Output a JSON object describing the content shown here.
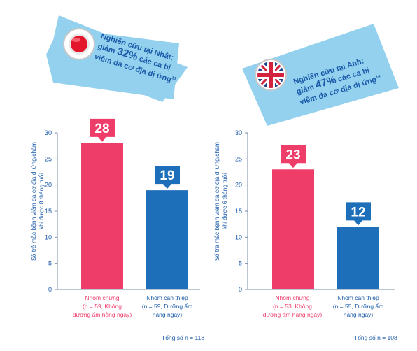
{
  "colors": {
    "control": "#ef3d6a",
    "intervention": "#1e6fba",
    "banner_bg": "#93d1ef",
    "axis_text": "#1a5aa8"
  },
  "panels": [
    {
      "banner": {
        "flag_icon": "japan-flag-icon",
        "line1": "Nghiên cứu tại Nhật:",
        "line2_prefix": "giảm ",
        "line2_pct": "32%",
        "line2_suffix": " các ca bị",
        "line3": "viêm da cơ địa dị ứng",
        "ref": "13"
      },
      "ylabel_line1": "Số trẻ mắc bệnh viêm da cơ địa dị ứng/chàm",
      "ylabel_line2": "khi được 8 tháng tuổi",
      "categories": [
        {
          "line1": "Nhóm chứng",
          "line2": "(n = 59, Không",
          "line3": "dưỡng ẩm hằng ngày)"
        },
        {
          "line1": "Nhóm can thiệp",
          "line2": "(n = 59, Dưỡng ẩm",
          "line3": "hằng ngày)"
        }
      ],
      "total": "Tổng số n = 118"
    },
    {
      "banner": {
        "flag_icon": "uk-flag-icon",
        "line1": "Nghiên cứu tại Anh:",
        "line2_prefix": "giảm ",
        "line2_pct": "47%",
        "line2_suffix": " các ca bị",
        "line3": "viêm da cơ địa dị ứng",
        "ref": "14"
      },
      "ylabel_line1": "Số trẻ mắc bệnh viêm da cơ địa dị ứng/chàm",
      "ylabel_line2": "khi được 6 tháng tuổi",
      "categories": [
        {
          "line1": "Nhóm chứng",
          "line2": "(n = 53, Không",
          "line3": "dưỡng ẩm hằng ngày)"
        },
        {
          "line1": "Nhóm can thiệp",
          "line2": "(n = 55, Dưỡng ẩm",
          "line3": "hằng ngày)"
        }
      ],
      "total": "Tổng số n = 108"
    }
  ],
  "chart_data": [
    {
      "type": "bar",
      "categories": [
        "Nhóm chứng (n = 59, Không dưỡng ẩm hằng ngày)",
        "Nhóm can thiệp (n = 59, Dưỡng ẩm hằng ngày)"
      ],
      "values": [
        28,
        19
      ],
      "title": "Nghiên cứu tại Nhật: giảm 32% các ca bị viêm da cơ địa dị ứng",
      "xlabel": "",
      "ylabel": "Số trẻ mắc bệnh viêm da cơ địa dị ứng/chàm khi được 8 tháng tuổi",
      "ylim": [
        0,
        30
      ],
      "yticks": [
        "0",
        "5",
        "10",
        "15",
        "20",
        "25",
        "30"
      ],
      "data_labels": [
        "28",
        "19"
      ],
      "grid": false
    },
    {
      "type": "bar",
      "categories": [
        "Nhóm chứng (n = 53, Không dưỡng ẩm hằng ngày)",
        "Nhóm can thiệp (n = 55, Dưỡng ẩm hằng ngày)"
      ],
      "values": [
        23,
        12
      ],
      "title": "Nghiên cứu tại Anh: giảm 47% các ca bị viêm da cơ địa dị ứng",
      "xlabel": "",
      "ylabel": "Số trẻ mắc bệnh viêm da cơ địa dị ứng/chàm khi được 6 tháng tuổi",
      "ylim": [
        0,
        30
      ],
      "yticks": [
        "0",
        "5",
        "10",
        "15",
        "20",
        "25",
        "30"
      ],
      "data_labels": [
        "23",
        "12"
      ],
      "grid": false
    }
  ]
}
